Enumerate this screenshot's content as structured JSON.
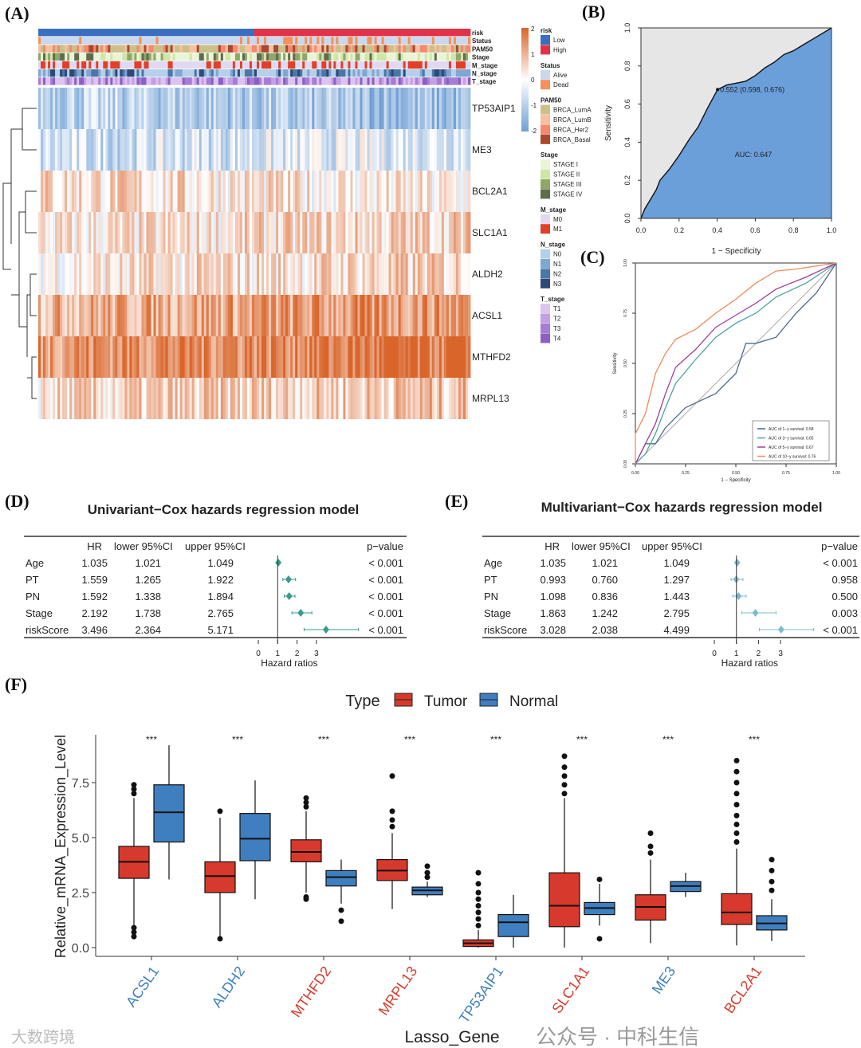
{
  "panel_labels": {
    "A": "(A)",
    "B": "(B)",
    "C": "(C)",
    "D": "(D)",
    "E": "(E)",
    "F": "(F)"
  },
  "watermarks": {
    "main": "公众号 · 中科生信",
    "corner": "大数跨境"
  },
  "chart_data": [
    {
      "id": "A",
      "type": "heatmap",
      "annotation_tracks": [
        "risk",
        "Status",
        "PAM50",
        "Stage",
        "M_stage",
        "N_stage",
        "T_stage"
      ],
      "genes": [
        "TP53AIP1",
        "ME3",
        "BCL2A1",
        "SLC1A1",
        "ALDH2",
        "ACSL1",
        "MTHFD2",
        "MRPL13"
      ],
      "gene_mean_z": [
        -1.1,
        -0.5,
        0.3,
        0.4,
        0.4,
        1.2,
        1.6,
        0.6
      ],
      "risk_split_fraction_low": 0.5,
      "colorbar": {
        "ticks": [
          "2",
          "1",
          "0",
          "-1",
          "-2"
        ],
        "low": "#6f9fd4",
        "mid": "#ffffff",
        "high": "#d9652a"
      },
      "legends": [
        {
          "title": "risk",
          "items": [
            {
              "label": "Low",
              "color": "#3a6fbf"
            },
            {
              "label": "High",
              "color": "#e0334a"
            }
          ]
        },
        {
          "title": "Status",
          "items": [
            {
              "label": "Alive",
              "color": "#c9d8ee"
            },
            {
              "label": "Dead",
              "color": "#f3915a"
            }
          ]
        },
        {
          "title": "PAM50",
          "items": [
            {
              "label": "BRCA_LumA",
              "color": "#cdbf8a"
            },
            {
              "label": "BRCA_LumB",
              "color": "#f7c0a0"
            },
            {
              "label": "BRCA_Her2",
              "color": "#f28a70"
            },
            {
              "label": "BRCA_Basal",
              "color": "#a9482e"
            }
          ]
        },
        {
          "title": "Stage",
          "items": [
            {
              "label": "STAGE I",
              "color": "#eaf5d8"
            },
            {
              "label": "STAGE II",
              "color": "#cfe6a8"
            },
            {
              "label": "STAGE III",
              "color": "#8ea86a"
            },
            {
              "label": "STAGE IV",
              "color": "#5f6d4c"
            }
          ]
        },
        {
          "title": "M_stage",
          "items": [
            {
              "label": "M0",
              "color": "#e2d9f0"
            },
            {
              "label": "M1",
              "color": "#e0402a"
            }
          ]
        },
        {
          "title": "N_stage",
          "items": [
            {
              "label": "N0",
              "color": "#b5d0ea"
            },
            {
              "label": "N1",
              "color": "#7fa7d0"
            },
            {
              "label": "N2",
              "color": "#4a77a6"
            },
            {
              "label": "N3",
              "color": "#2b4a78"
            }
          ]
        },
        {
          "title": "T_stage",
          "items": [
            {
              "label": "T1",
              "color": "#dcc4ee"
            },
            {
              "label": "T2",
              "color": "#c4a0e4"
            },
            {
              "label": "T3",
              "color": "#a67dd4"
            },
            {
              "label": "T4",
              "color": "#8c5fc4"
            }
          ]
        }
      ]
    },
    {
      "id": "B",
      "type": "line",
      "xlabel": "1 − Specificity",
      "ylabel": "Sensitivity",
      "xticks": [
        "0.0",
        "0.2",
        "0.4",
        "0.6",
        "0.8",
        "1.0"
      ],
      "yticks": [
        "0.0",
        "0.2",
        "0.4",
        "0.6",
        "0.8",
        "1.0"
      ],
      "xlim": [
        0,
        1
      ],
      "ylim": [
        0,
        1
      ],
      "curve": [
        [
          0,
          0
        ],
        [
          0.02,
          0.05
        ],
        [
          0.05,
          0.1
        ],
        [
          0.08,
          0.15
        ],
        [
          0.1,
          0.2
        ],
        [
          0.15,
          0.26
        ],
        [
          0.2,
          0.33
        ],
        [
          0.25,
          0.41
        ],
        [
          0.3,
          0.48
        ],
        [
          0.35,
          0.58
        ],
        [
          0.402,
          0.676
        ],
        [
          0.45,
          0.7
        ],
        [
          0.5,
          0.71
        ],
        [
          0.55,
          0.72
        ],
        [
          0.6,
          0.75
        ],
        [
          0.65,
          0.79
        ],
        [
          0.7,
          0.82
        ],
        [
          0.75,
          0.86
        ],
        [
          0.8,
          0.88
        ],
        [
          0.85,
          0.91
        ],
        [
          0.9,
          0.94
        ],
        [
          0.95,
          0.97
        ],
        [
          1,
          1
        ]
      ],
      "best_point": {
        "x": 0.402,
        "y": 0.676,
        "label": "0.552 (0.598, 0.676)"
      },
      "auc_label": "AUC: 0.647",
      "fill_color": "#6b9fda"
    },
    {
      "id": "C",
      "type": "line",
      "xlabel": "1 − Specificity",
      "ylabel": "Sensitivity",
      "xticks": [
        "0.00",
        "0.25",
        "0.50",
        "0.75",
        "1.00"
      ],
      "yticks": [
        "0.00",
        "0.25",
        "0.50",
        "0.75",
        "1.00"
      ],
      "xlim": [
        0,
        1
      ],
      "ylim": [
        0,
        1
      ],
      "series": [
        {
          "name": "AUC of 1−y survival: 0.58",
          "color": "#4d6b8c",
          "points": [
            [
              0,
              0
            ],
            [
              0.05,
              0.1
            ],
            [
              0.1,
              0.1
            ],
            [
              0.15,
              0.18
            ],
            [
              0.25,
              0.28
            ],
            [
              0.4,
              0.35
            ],
            [
              0.5,
              0.45
            ],
            [
              0.55,
              0.6
            ],
            [
              0.6,
              0.6
            ],
            [
              0.7,
              0.63
            ],
            [
              0.8,
              0.75
            ],
            [
              0.9,
              0.85
            ],
            [
              1,
              1
            ]
          ]
        },
        {
          "name": "AUC of 3−y survival: 0.65",
          "color": "#4aa3a3",
          "points": [
            [
              0,
              0
            ],
            [
              0.05,
              0.05
            ],
            [
              0.1,
              0.15
            ],
            [
              0.15,
              0.28
            ],
            [
              0.2,
              0.4
            ],
            [
              0.3,
              0.52
            ],
            [
              0.4,
              0.63
            ],
            [
              0.5,
              0.7
            ],
            [
              0.6,
              0.75
            ],
            [
              0.7,
              0.83
            ],
            [
              0.85,
              0.9
            ],
            [
              1,
              1
            ]
          ]
        },
        {
          "name": "AUC of 5−y survival: 0.67",
          "color": "#a23d9e",
          "points": [
            [
              0,
              0
            ],
            [
              0.05,
              0.1
            ],
            [
              0.1,
              0.2
            ],
            [
              0.15,
              0.35
            ],
            [
              0.2,
              0.48
            ],
            [
              0.3,
              0.57
            ],
            [
              0.4,
              0.68
            ],
            [
              0.5,
              0.74
            ],
            [
              0.6,
              0.8
            ],
            [
              0.7,
              0.87
            ],
            [
              0.85,
              0.93
            ],
            [
              1,
              1
            ]
          ]
        },
        {
          "name": "AUC of 10−y survival: 0.76",
          "color": "#f08a5a",
          "points": [
            [
              0,
              0
            ],
            [
              0,
              0.15
            ],
            [
              0.05,
              0.25
            ],
            [
              0.1,
              0.45
            ],
            [
              0.15,
              0.55
            ],
            [
              0.2,
              0.62
            ],
            [
              0.3,
              0.67
            ],
            [
              0.4,
              0.75
            ],
            [
              0.5,
              0.82
            ],
            [
              0.6,
              0.9
            ],
            [
              0.7,
              0.96
            ],
            [
              0.8,
              0.97
            ],
            [
              1,
              1
            ]
          ]
        }
      ]
    },
    {
      "id": "D",
      "type": "table",
      "title": "Univariant−Cox hazards regression model",
      "headers": [
        "",
        "HR",
        "lower 95%CI",
        "upper 95%CI",
        "p−value"
      ],
      "rows": [
        [
          "Age",
          "1.035",
          "1.021",
          "1.049",
          "< 0.001"
        ],
        [
          "PT",
          "1.559",
          "1.265",
          "1.922",
          "< 0.001"
        ],
        [
          "PN",
          "1.592",
          "1.338",
          "1.894",
          "< 0.001"
        ],
        [
          "Stage",
          "2.192",
          "1.738",
          "2.765",
          "< 0.001"
        ],
        [
          "riskScore",
          "3.496",
          "2.364",
          "5.171",
          "< 0.001"
        ]
      ],
      "forest": {
        "xticks": [
          "0",
          "1",
          "2",
          "3"
        ],
        "xlabel": "Hazard ratios",
        "color": "#3a9a8a",
        "values": [
          [
            1.035,
            1.021,
            1.049
          ],
          [
            1.559,
            1.265,
            1.922
          ],
          [
            1.592,
            1.338,
            1.894
          ],
          [
            2.192,
            1.738,
            2.765
          ],
          [
            3.496,
            2.364,
            5.171
          ]
        ]
      }
    },
    {
      "id": "E",
      "type": "table",
      "title": "Multivariant−Cox hazards regression model",
      "headers": [
        "",
        "HR",
        "lower 95%CI",
        "upper 95%CI",
        "p−value"
      ],
      "rows": [
        [
          "Age",
          "1.035",
          "1.021",
          "1.049",
          "< 0.001"
        ],
        [
          "PT",
          "0.993",
          "0.760",
          "1.297",
          "0.958"
        ],
        [
          "PN",
          "1.098",
          "0.836",
          "1.443",
          "0.500"
        ],
        [
          "Stage",
          "1.863",
          "1.242",
          "2.795",
          "0.003"
        ],
        [
          "riskScore",
          "3.028",
          "2.038",
          "4.499",
          "< 0.001"
        ]
      ],
      "forest": {
        "xticks": [
          "0",
          "1",
          "2",
          "3"
        ],
        "xlabel": "Hazard ratios",
        "color": "#7bbccc",
        "values": [
          [
            1.035,
            1.021,
            1.049
          ],
          [
            0.993,
            0.76,
            1.297
          ],
          [
            1.098,
            0.836,
            1.443
          ],
          [
            1.863,
            1.242,
            2.795
          ],
          [
            3.028,
            2.038,
            4.499
          ]
        ]
      }
    },
    {
      "id": "F",
      "type": "box",
      "xlabel": "Lasso_Gene",
      "ylabel": "Relative_mRNA_Expression_Level",
      "yticks": [
        "0.0",
        "2.5",
        "5.0",
        "7.5"
      ],
      "ylim": [
        -0.4,
        9.6
      ],
      "legend": {
        "title": "Type",
        "items": [
          {
            "label": "Tumor",
            "color": "#d73a2c"
          },
          {
            "label": "Normal",
            "color": "#3f7fbf"
          }
        ]
      },
      "significance": "***",
      "genes": [
        {
          "name": "ACSL1",
          "label_color": "#3f7fbf",
          "Tumor": {
            "lo": 1.0,
            "q1": 3.15,
            "med": 3.9,
            "q3": 4.6,
            "hi": 6.8,
            "out": [
              7.0,
              7.2,
              7.4,
              0.5,
              0.7,
              0.9
            ]
          },
          "Normal": {
            "lo": 3.1,
            "q1": 4.8,
            "med": 6.15,
            "q3": 7.4,
            "hi": 9.2,
            "out": []
          }
        },
        {
          "name": "ALDH2",
          "label_color": "#3f7fbf",
          "Tumor": {
            "lo": 0.5,
            "q1": 2.5,
            "med": 3.25,
            "q3": 3.9,
            "hi": 5.9,
            "out": [
              6.2,
              0.4
            ]
          },
          "Normal": {
            "lo": 2.2,
            "q1": 3.95,
            "med": 4.95,
            "q3": 6.1,
            "hi": 7.6,
            "out": []
          }
        },
        {
          "name": "MTHFD2",
          "label_color": "#d73a2c",
          "Tumor": {
            "lo": 2.5,
            "q1": 3.9,
            "med": 4.35,
            "q3": 4.9,
            "hi": 6.2,
            "out": [
              6.4,
              6.6,
              6.8,
              2.3,
              2.2
            ]
          },
          "Normal": {
            "lo": 2.0,
            "q1": 2.8,
            "med": 3.2,
            "q3": 3.5,
            "hi": 4.0,
            "out": [
              1.7,
              1.2
            ]
          }
        },
        {
          "name": "MRPL13",
          "label_color": "#d73a2c",
          "Tumor": {
            "lo": 1.75,
            "q1": 3.05,
            "med": 3.5,
            "q3": 4.0,
            "hi": 5.2,
            "out": [
              5.5,
              5.8,
              6.2,
              7.8
            ]
          },
          "Normal": {
            "lo": 2.3,
            "q1": 2.4,
            "med": 2.6,
            "q3": 2.75,
            "hi": 3.0,
            "out": [
              3.2,
              3.4,
              3.7
            ]
          }
        },
        {
          "name": "TP53AIP1",
          "label_color": "#3f7fbf",
          "Tumor": {
            "lo": 0.0,
            "q1": 0.05,
            "med": 0.2,
            "q3": 0.35,
            "hi": 0.8,
            "out": [
              1.0,
              1.3,
              1.6,
              1.9,
              2.2,
              2.5,
              2.9,
              3.4
            ]
          },
          "Normal": {
            "lo": 0.0,
            "q1": 0.5,
            "med": 1.15,
            "q3": 1.5,
            "hi": 2.4,
            "out": []
          }
        },
        {
          "name": "SLC1A1",
          "label_color": "#d73a2c",
          "Tumor": {
            "lo": 0.0,
            "q1": 0.95,
            "med": 1.9,
            "q3": 3.4,
            "hi": 6.8,
            "out": [
              7.0,
              7.4,
              7.8,
              8.2,
              8.7
            ]
          },
          "Normal": {
            "lo": 1.0,
            "q1": 1.5,
            "med": 1.8,
            "q3": 2.05,
            "hi": 2.9,
            "out": [
              3.1,
              0.4
            ]
          }
        },
        {
          "name": "ME3",
          "label_color": "#3f7fbf",
          "Tumor": {
            "lo": 0.2,
            "q1": 1.25,
            "med": 1.85,
            "q3": 2.4,
            "hi": 4.0,
            "out": [
              4.3,
              4.6,
              5.2
            ]
          },
          "Normal": {
            "lo": 2.3,
            "q1": 2.55,
            "med": 2.8,
            "q3": 3.0,
            "hi": 3.4,
            "out": []
          }
        },
        {
          "name": "BCL2A1",
          "label_color": "#d73a2c",
          "Tumor": {
            "lo": 0.1,
            "q1": 1.05,
            "med": 1.6,
            "q3": 2.45,
            "hi": 4.5,
            "out": [
              4.8,
              5.2,
              5.6,
              6.0,
              6.5,
              7.0,
              7.5,
              8.0,
              8.5
            ]
          },
          "Normal": {
            "lo": 0.3,
            "q1": 0.8,
            "med": 1.1,
            "q3": 1.45,
            "hi": 2.2,
            "out": [
              2.6,
              3.0,
              3.5,
              4.0
            ]
          }
        }
      ]
    }
  ]
}
